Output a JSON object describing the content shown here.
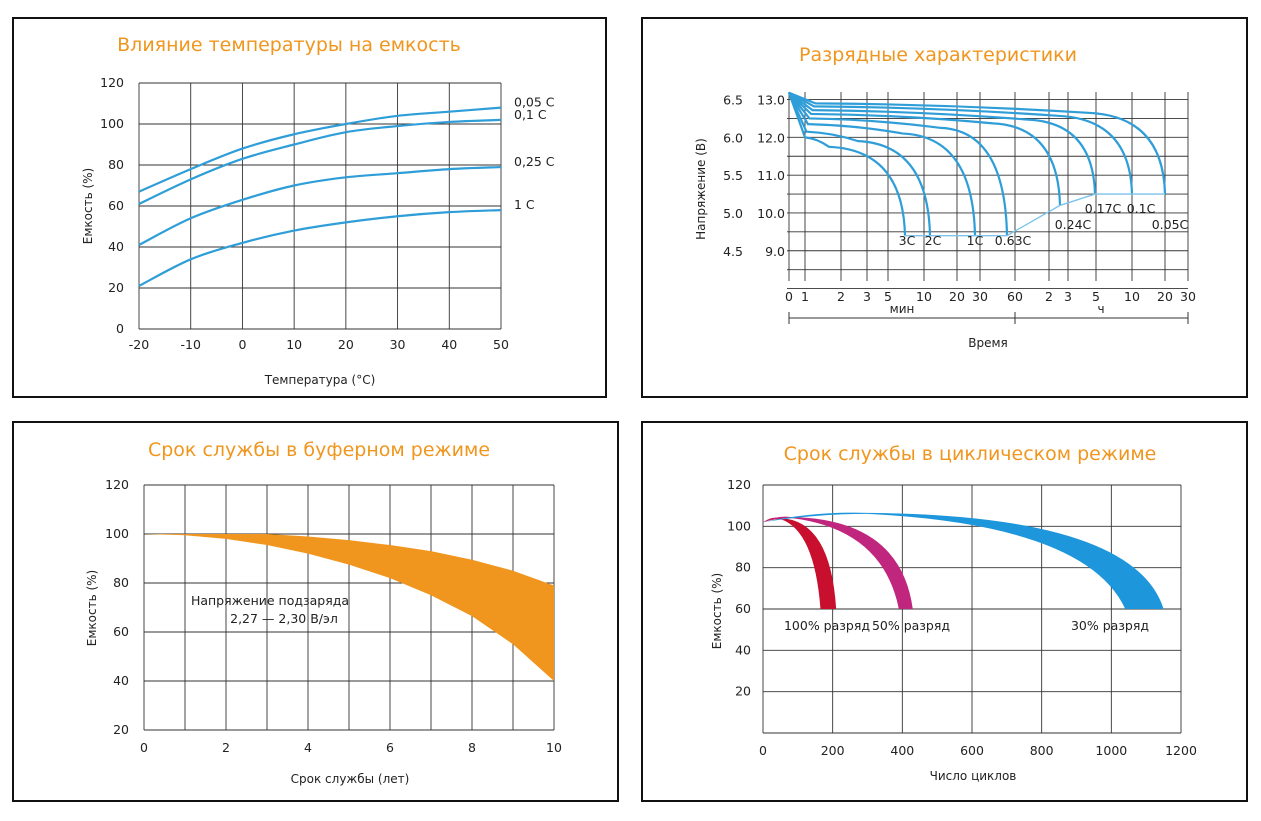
{
  "chart_data": [
    {
      "type": "line",
      "title": "Влияние температуры на емкость",
      "xlabel": "Температура (°C)",
      "ylabel": "Емкость (%)",
      "x": [
        -20,
        -10,
        0,
        10,
        20,
        30,
        40,
        50
      ],
      "xticks": [
        "-20",
        "-10",
        "0",
        "10",
        "20",
        "30",
        "40",
        "50"
      ],
      "yticks": [
        "0",
        "20",
        "40",
        "60",
        "80",
        "100",
        "120"
      ],
      "xlim": [
        -20,
        50
      ],
      "ylim": [
        0,
        120
      ],
      "series": [
        {
          "name": "0,05 C",
          "values": [
            67,
            78,
            88,
            95,
            100,
            104,
            106,
            108
          ]
        },
        {
          "name": "0,1 C",
          "values": [
            61,
            73,
            83,
            90,
            96,
            99,
            101,
            102
          ]
        },
        {
          "name": "0,25 C",
          "values": [
            41,
            54,
            63,
            70,
            74,
            76,
            78,
            79
          ]
        },
        {
          "name": "1 C",
          "values": [
            21,
            34,
            42,
            48,
            52,
            55,
            57,
            58
          ]
        }
      ]
    },
    {
      "type": "line",
      "title": "Разрядные характеристики",
      "xlabel": "Время",
      "ylabel": "Напряжение (В)",
      "xticks": [
        "0",
        "1",
        "2",
        "3",
        "5",
        "10",
        "20",
        "30",
        "60",
        "2",
        "3",
        "5",
        "10",
        "20",
        "30"
      ],
      "unit_min": "мин",
      "unit_h": "ч",
      "yticks_left": [
        "4.5",
        "5.0",
        "5.5",
        "6.0",
        "6.5"
      ],
      "yticks_right": [
        "9.0",
        "10.0",
        "11.0",
        "12.0",
        "13.0"
      ],
      "series": [
        {
          "name": "3C",
          "end_voltage": 9.4
        },
        {
          "name": "2C",
          "end_voltage": 9.4
        },
        {
          "name": "1C",
          "end_voltage": 9.4
        },
        {
          "name": "0.63C",
          "end_voltage": 9.4
        },
        {
          "name": "0.24C",
          "end_voltage": 10.2
        },
        {
          "name": "0.17C",
          "end_voltage": 10.5
        },
        {
          "name": "0.1C",
          "end_voltage": 10.5
        },
        {
          "name": "0.05C",
          "end_voltage": 10.5
        }
      ]
    },
    {
      "type": "area",
      "title": "Срок службы в буферном режиме",
      "xlabel": "Срок службы (лет)",
      "ylabel": "Емкость (%)",
      "annotation_line1": "Напряжение подзаряда",
      "annotation_line2": "2,27 — 2,30 В/эл",
      "x": [
        0,
        1,
        2,
        3,
        4,
        5,
        6,
        7,
        8,
        9,
        10
      ],
      "xticks": [
        "0",
        "2",
        "4",
        "6",
        "8",
        "10"
      ],
      "yticks": [
        "20",
        "40",
        "60",
        "80",
        "100",
        "120"
      ],
      "xlim": [
        0,
        10
      ],
      "ylim": [
        20,
        120
      ],
      "upper": [
        100,
        100,
        100,
        100,
        99,
        97.5,
        95.5,
        93,
        89.5,
        85,
        79
      ],
      "lower": [
        100,
        99.5,
        98,
        95.5,
        92,
        87.5,
        82,
        75,
        66.5,
        55,
        40
      ],
      "color": "#f0961e"
    },
    {
      "type": "area",
      "title": "Срок службы в циклическом режиме",
      "xlabel": "Число циклов",
      "ylabel": "Емкость (%)",
      "x_ticks": [
        "0",
        "200",
        "400",
        "600",
        "800",
        "1000",
        "1200"
      ],
      "yticks": [
        "20",
        "40",
        "60",
        "80",
        "100",
        "120"
      ],
      "xlim": [
        0,
        1200
      ],
      "ylim": [
        0,
        120
      ],
      "bands": [
        {
          "name": "100% разряд",
          "color": "#c8102e",
          "start": 50,
          "end_inner": 165,
          "end_outer": 210
        },
        {
          "name": "50% разряд",
          "color": "#c0267e",
          "start": 80,
          "end_inner": 390,
          "end_outer": 430
        },
        {
          "name": "30% разряд",
          "color": "#1e96dc",
          "start": 300,
          "end_inner": 1040,
          "end_outer": 1150
        }
      ]
    }
  ]
}
